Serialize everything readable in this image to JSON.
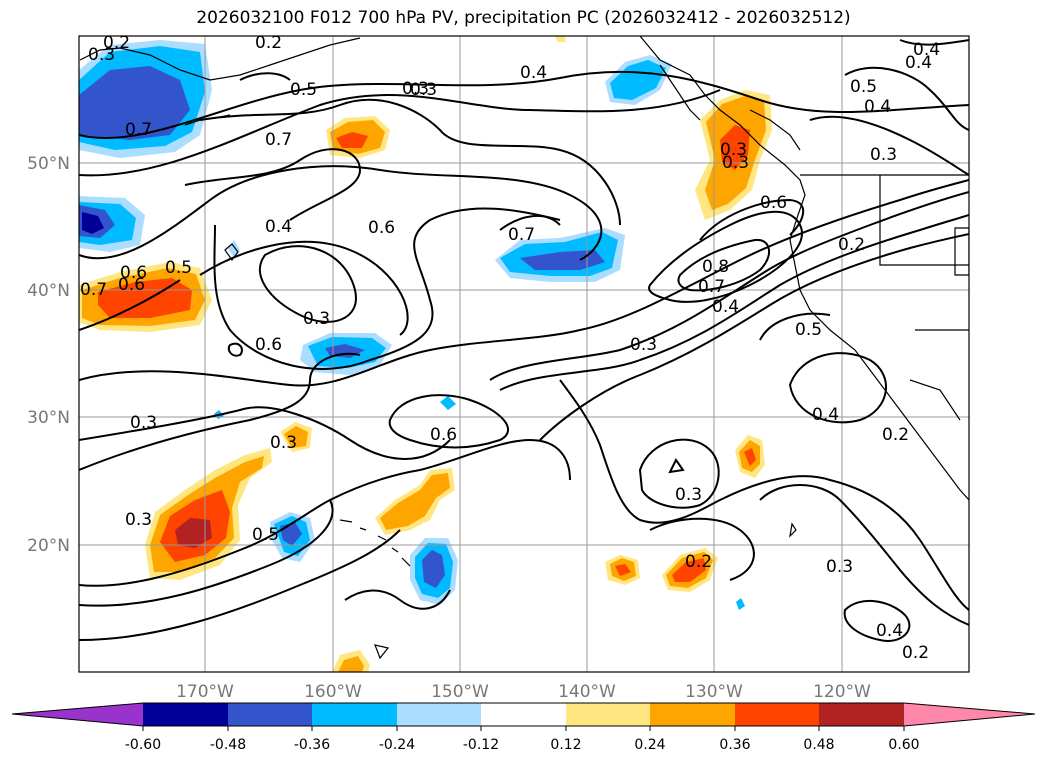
{
  "title": "2026032100 F012 700 hPa PV, precipitation PC (2026032412 - 2026032512)",
  "lon_ticks": [
    "170°W",
    "160°W",
    "150°W",
    "140°W",
    "130°W",
    "120°W"
  ],
  "lat_ticks": [
    "50°N",
    "40°N",
    "30°N",
    "20°N"
  ],
  "colorbar": {
    "ticks": [
      "-0.60",
      "-0.48",
      "-0.36",
      "-0.24",
      "-0.12",
      "0.12",
      "0.24",
      "0.36",
      "0.48",
      "0.60"
    ],
    "colors": [
      "#9933cc",
      "#000099",
      "#3355cc",
      "#00bbff",
      "#aaddff",
      "#ffffff",
      "#ffe680",
      "#ffa500",
      "#ff4400",
      "#b22222",
      "#ff88aa"
    ]
  },
  "contour_labels": [
    "0.3",
    "0.2",
    "0.4",
    "0.5",
    "0.7",
    "0.3",
    "0.4",
    "0.5",
    "0.4",
    "0.3",
    "0.6",
    "0.7",
    "0.4",
    "0.3",
    "0.6",
    "0.5",
    "0.6",
    "0.7",
    "0.3",
    "0.6",
    "0.3",
    "0.3",
    "0.8",
    "0.7",
    "0.4",
    "0.6",
    "0.2",
    "0.5",
    "0.3",
    "0.4",
    "0.3",
    "0.3",
    "0.3",
    "0.2",
    "0.2",
    "0.5",
    "0.3",
    "0.4",
    "0.2",
    "0.7",
    "0.4",
    "0.2",
    "0.6",
    "0.3"
  ]
}
